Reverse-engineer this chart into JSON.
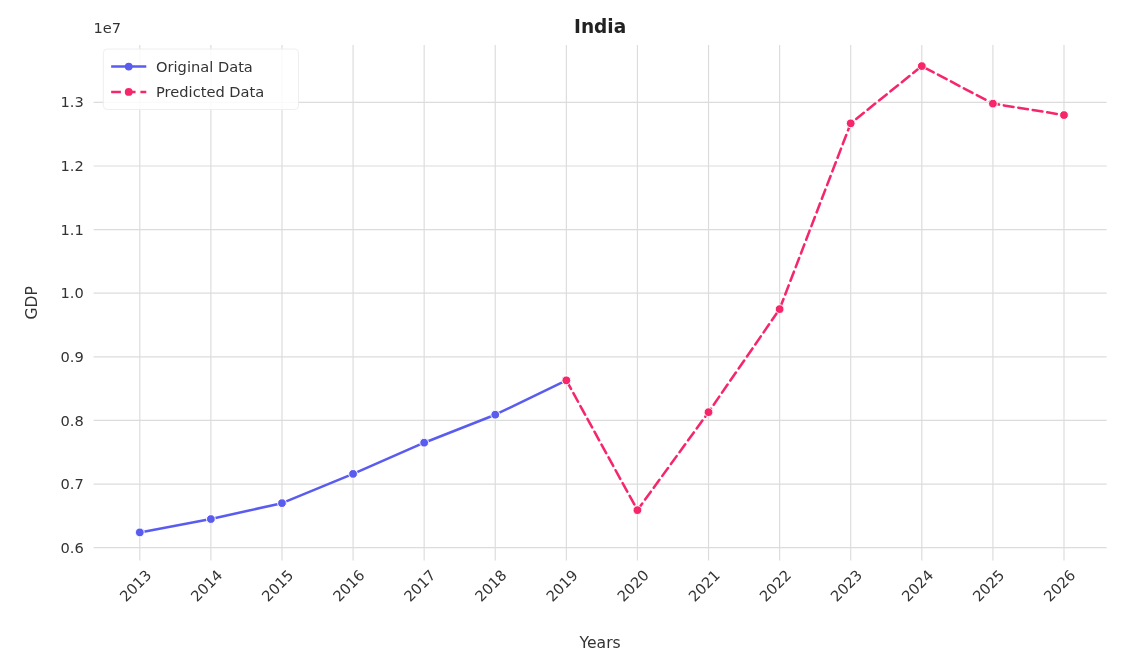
{
  "chart_data": {
    "type": "line",
    "title": "India",
    "xlabel": "Years",
    "ylabel": "GDP",
    "annotations": [
      "1e7"
    ],
    "series": [
      {
        "name": "Original Data",
        "color": "#5a5cf0",
        "line_style": "solid",
        "x": [
          2013,
          2014,
          2015,
          2016,
          2017,
          2018,
          2019
        ],
        "values": [
          0.624,
          0.645,
          0.67,
          0.716,
          0.765,
          0.809,
          0.863
        ]
      },
      {
        "name": "Predicted Data",
        "color": "#f5276a",
        "line_style": "dashed",
        "x": [
          2019,
          2020,
          2021,
          2022,
          2023,
          2024,
          2025,
          2026
        ],
        "values": [
          0.863,
          0.659,
          0.813,
          0.975,
          1.267,
          1.357,
          1.298,
          1.28
        ]
      }
    ],
    "xlim": [
      2012.35,
      2026.6
    ],
    "xticks": [
      2013,
      2014,
      2015,
      2016,
      2017,
      2018,
      2019,
      2020,
      2021,
      2022,
      2023,
      2024,
      2025,
      2026
    ],
    "ylim": [
      0.58,
      1.39
    ],
    "yticks": [
      {
        "value": 0.6,
        "label": "0.6"
      },
      {
        "value": 0.7,
        "label": "0.7"
      },
      {
        "value": 0.8,
        "label": "0.8"
      },
      {
        "value": 0.9,
        "label": "0.9"
      },
      {
        "value": 1.0,
        "label": "1.0"
      },
      {
        "value": 1.1,
        "label": "1.1"
      },
      {
        "value": 1.2,
        "label": "1.2"
      },
      {
        "value": 1.3,
        "label": "1.3"
      }
    ],
    "grid": true,
    "legend": "top left",
    "marker": "circle"
  }
}
